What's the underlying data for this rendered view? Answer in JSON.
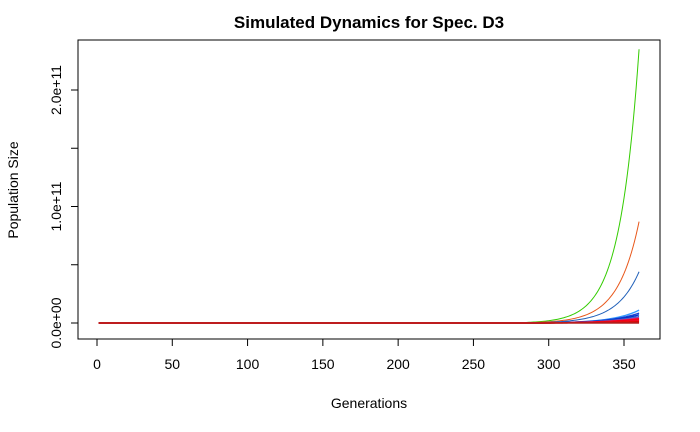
{
  "chart_data": {
    "type": "line",
    "title": "Simulated Dynamics for Spec. D3",
    "xlabel": "Generations",
    "ylabel": "Population Size",
    "xlim": [
      0,
      360
    ],
    "ylim": [
      0,
      235000000000
    ],
    "x_ticks": [
      0,
      50,
      100,
      150,
      200,
      250,
      300,
      350
    ],
    "x_tick_labels": [
      "0",
      "50",
      "100",
      "150",
      "200",
      "250",
      "300",
      "350"
    ],
    "y_ticks": [
      0,
      100000000000,
      200000000000
    ],
    "y_tick_labels": [
      "0.0e+00",
      "1.0e+11",
      "2.0e+11"
    ],
    "y_minor_ticks": [
      50000000000,
      150000000000
    ],
    "grid": false,
    "legend": "none",
    "x_start": 1,
    "x_end": 360,
    "series": [
      {
        "color": "#33cc00",
        "onset": 270,
        "final": 235000000000
      },
      {
        "color": "#e8571a",
        "onset": 275,
        "final": 87000000000
      },
      {
        "color": "#1f5fb8",
        "onset": 280,
        "final": 44000000000
      },
      {
        "color": "#3399ff",
        "onset": 290,
        "final": 11000000000
      },
      {
        "color": "#1a3fd0",
        "onset": 290,
        "final": 8500000000
      },
      {
        "color": "#0033cc",
        "onset": 290,
        "final": 7000000000
      },
      {
        "color": "#3366cc",
        "onset": 290,
        "final": 5500000000
      },
      {
        "color": "#cc3399",
        "onset": 295,
        "final": 4500000000
      },
      {
        "color": "#ee0033",
        "onset": 295,
        "final": 3800000000
      },
      {
        "color": "#ff0000",
        "onset": 295,
        "final": 3000000000
      },
      {
        "color": "#e6002e",
        "onset": 295,
        "final": 2300000000
      },
      {
        "color": "#ff1a1a",
        "onset": 300,
        "final": 1600000000
      },
      {
        "color": "#cc0000",
        "onset": 300,
        "final": 900000000
      },
      {
        "color": "#b22222",
        "onset": 1,
        "final": 0
      }
    ]
  }
}
